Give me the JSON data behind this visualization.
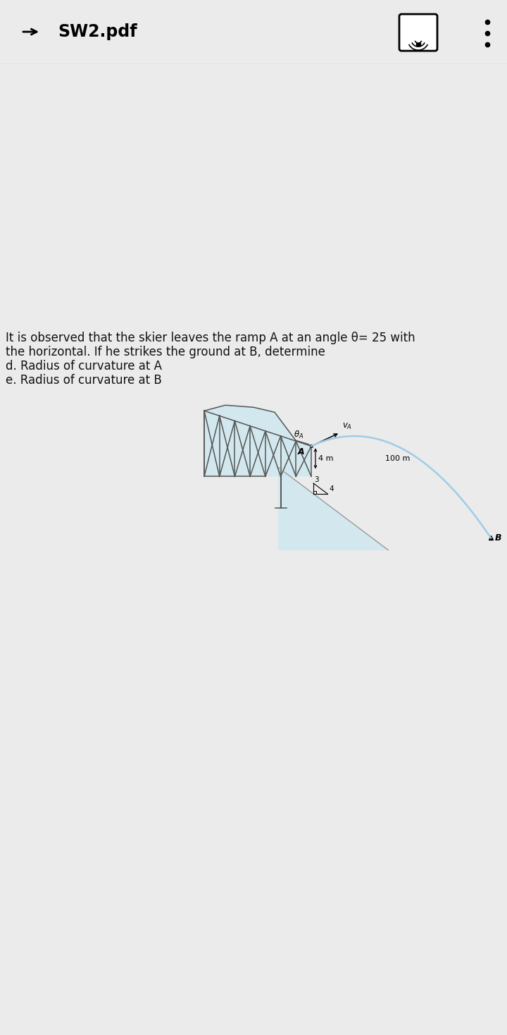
{
  "bg_color": "#ebebeb",
  "page_bg": "#ffffff",
  "header_bg": "#ffffff",
  "title_text": "SW2.pdf",
  "line1": "It is observed that the skier leaves the ramp A at an angle θ= 25 with",
  "line2": "the horizontal. If he strikes the ground at B, determine",
  "line3": "d. Radius of curvature at A",
  "line4": "e. Radius of curvature at B",
  "truss_color": "#555555",
  "snow_color": "#c8e8f0",
  "traj_color": "#9ecde8",
  "text_color": "#111111",
  "header_divider": "#cccccc",
  "fig_width": 7.2,
  "fig_height": 14.67,
  "dpi": 100
}
